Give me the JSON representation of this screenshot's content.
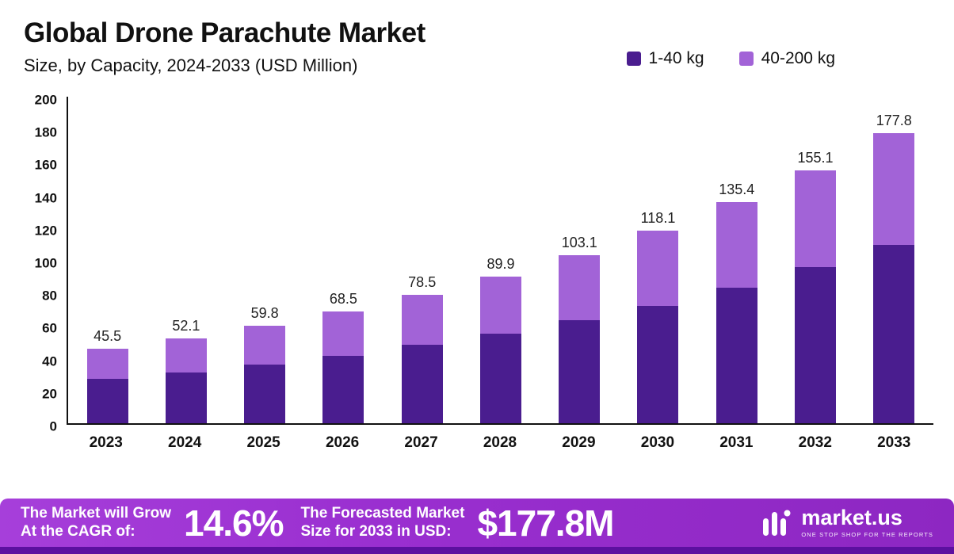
{
  "header": {
    "title": "Global Drone Parachute Market",
    "subtitle": "Size, by Capacity, 2024-2033 (USD Million)"
  },
  "legend": {
    "items": [
      {
        "label": "1-40 kg",
        "color": "#4a1d8f"
      },
      {
        "label": "40-200 kg",
        "color": "#a263d7"
      }
    ]
  },
  "chart_data": {
    "type": "bar",
    "stacked": true,
    "title": "Global Drone Parachute Market",
    "subtitle": "Size, by Capacity, 2024-2033 (USD Million)",
    "categories": [
      "2023",
      "2024",
      "2025",
      "2026",
      "2027",
      "2028",
      "2029",
      "2030",
      "2031",
      "2032",
      "2033"
    ],
    "series": [
      {
        "name": "1-40 kg",
        "color": "#4a1d8f",
        "values": [
          27,
          31,
          36,
          41.5,
          48,
          55,
          63,
          72,
          83,
          95.5,
          109
        ]
      },
      {
        "name": "40-200 kg",
        "color": "#a263d7",
        "values": [
          18.5,
          21.1,
          23.8,
          27,
          30.5,
          34.9,
          40.1,
          46.1,
          52.4,
          59.6,
          68.8
        ]
      }
    ],
    "totals": [
      45.5,
      52.1,
      59.8,
      68.5,
      78.5,
      89.9,
      103.1,
      118.1,
      135.4,
      155.1,
      177.8
    ],
    "ylabel": "",
    "xlabel": "",
    "ylim": [
      0,
      200
    ],
    "y_ticks": [
      0,
      20,
      40,
      60,
      80,
      100,
      120,
      140,
      160,
      180,
      200
    ],
    "grid": false,
    "legend_position": "top-right"
  },
  "banner": {
    "cagr_label_line1": "The Market will Grow",
    "cagr_label_line2": "At the CAGR of:",
    "cagr_value": "14.6%",
    "forecast_label_line1": "The Forecasted Market",
    "forecast_label_line2": "Size for 2033 in USD:",
    "forecast_value": "$177.8M",
    "brand": {
      "name": "market.us",
      "tagline": "ONE STOP SHOP FOR THE REPORTS"
    }
  }
}
